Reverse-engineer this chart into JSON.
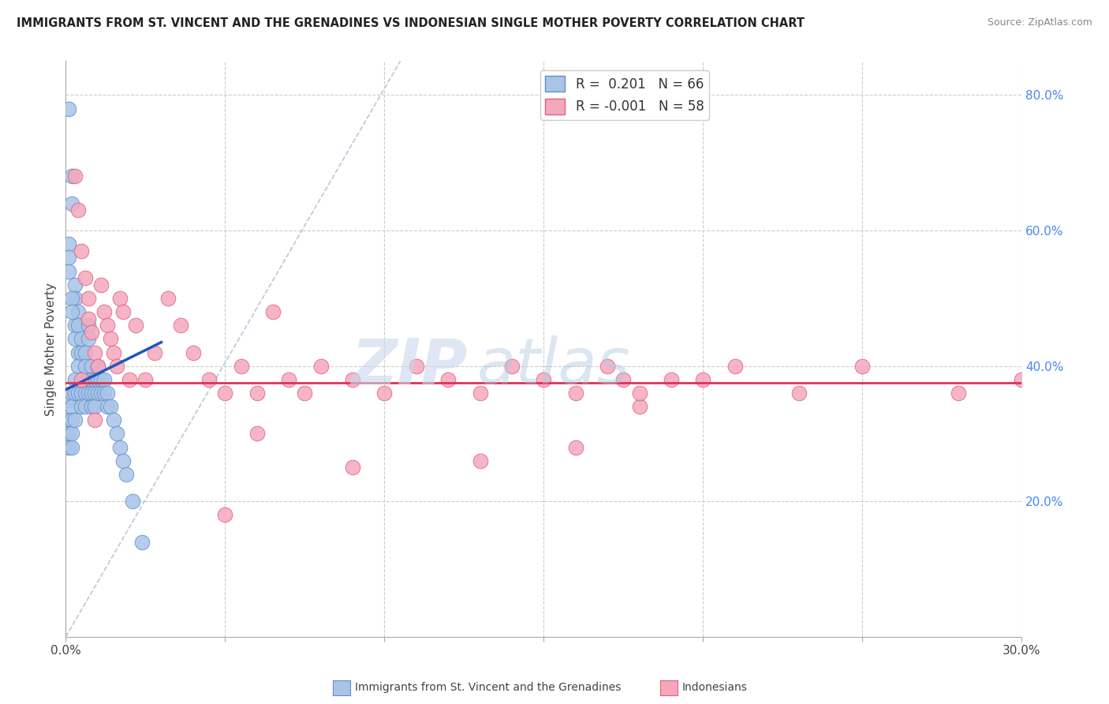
{
  "title": "IMMIGRANTS FROM ST. VINCENT AND THE GRENADINES VS INDONESIAN SINGLE MOTHER POVERTY CORRELATION CHART",
  "source": "Source: ZipAtlas.com",
  "ylabel": "Single Mother Poverty",
  "right_ytick_vals": [
    0.8,
    0.6,
    0.4,
    0.2
  ],
  "xmin": 0.0,
  "xmax": 0.3,
  "ymin": 0.0,
  "ymax": 0.85,
  "blue_color": "#aac4e8",
  "pink_color": "#f5a8bc",
  "blue_edge_color": "#6090c8",
  "pink_edge_color": "#e06080",
  "blue_line_color": "#2255bb",
  "pink_line_color": "#dd3355",
  "dashed_line_color": "#b8c8d8",
  "watermark_zip": "ZIP",
  "watermark_atlas": "atlas",
  "blue_scatter_x": [
    0.001,
    0.001,
    0.001,
    0.001,
    0.001,
    0.002,
    0.002,
    0.002,
    0.002,
    0.002,
    0.002,
    0.002,
    0.003,
    0.003,
    0.003,
    0.003,
    0.003,
    0.003,
    0.004,
    0.004,
    0.004,
    0.004,
    0.004,
    0.005,
    0.005,
    0.005,
    0.005,
    0.005,
    0.006,
    0.006,
    0.006,
    0.006,
    0.007,
    0.007,
    0.007,
    0.007,
    0.008,
    0.008,
    0.008,
    0.008,
    0.009,
    0.009,
    0.009,
    0.01,
    0.01,
    0.01,
    0.011,
    0.011,
    0.012,
    0.012,
    0.013,
    0.013,
    0.014,
    0.015,
    0.016,
    0.017,
    0.018,
    0.019,
    0.021,
    0.024,
    0.001,
    0.001,
    0.001,
    0.002,
    0.002,
    0.003
  ],
  "blue_scatter_y": [
    0.78,
    0.35,
    0.32,
    0.3,
    0.28,
    0.68,
    0.64,
    0.36,
    0.34,
    0.32,
    0.3,
    0.28,
    0.52,
    0.5,
    0.46,
    0.44,
    0.36,
    0.32,
    0.48,
    0.46,
    0.42,
    0.4,
    0.36,
    0.44,
    0.42,
    0.38,
    0.36,
    0.34,
    0.42,
    0.4,
    0.36,
    0.34,
    0.46,
    0.44,
    0.38,
    0.36,
    0.4,
    0.38,
    0.36,
    0.34,
    0.38,
    0.36,
    0.34,
    0.4,
    0.38,
    0.36,
    0.38,
    0.36,
    0.38,
    0.36,
    0.36,
    0.34,
    0.34,
    0.32,
    0.3,
    0.28,
    0.26,
    0.24,
    0.2,
    0.14,
    0.58,
    0.56,
    0.54,
    0.5,
    0.48,
    0.38
  ],
  "pink_scatter_x": [
    0.003,
    0.004,
    0.005,
    0.006,
    0.007,
    0.007,
    0.008,
    0.009,
    0.01,
    0.011,
    0.012,
    0.013,
    0.014,
    0.015,
    0.016,
    0.017,
    0.018,
    0.02,
    0.022,
    0.025,
    0.028,
    0.032,
    0.036,
    0.04,
    0.045,
    0.05,
    0.055,
    0.06,
    0.065,
    0.07,
    0.075,
    0.08,
    0.09,
    0.1,
    0.11,
    0.12,
    0.13,
    0.14,
    0.15,
    0.16,
    0.17,
    0.175,
    0.18,
    0.19,
    0.2,
    0.21,
    0.23,
    0.25,
    0.28,
    0.3,
    0.005,
    0.009,
    0.06,
    0.18,
    0.16,
    0.13,
    0.09,
    0.05
  ],
  "pink_scatter_y": [
    0.68,
    0.63,
    0.57,
    0.53,
    0.5,
    0.47,
    0.45,
    0.42,
    0.4,
    0.52,
    0.48,
    0.46,
    0.44,
    0.42,
    0.4,
    0.5,
    0.48,
    0.38,
    0.46,
    0.38,
    0.42,
    0.5,
    0.46,
    0.42,
    0.38,
    0.36,
    0.4,
    0.36,
    0.48,
    0.38,
    0.36,
    0.4,
    0.38,
    0.36,
    0.4,
    0.38,
    0.36,
    0.4,
    0.38,
    0.36,
    0.4,
    0.38,
    0.34,
    0.38,
    0.38,
    0.4,
    0.36,
    0.4,
    0.36,
    0.38,
    0.38,
    0.32,
    0.3,
    0.36,
    0.28,
    0.26,
    0.25,
    0.18
  ],
  "blue_trend_x": [
    0.0,
    0.03
  ],
  "blue_trend_y": [
    0.365,
    0.435
  ],
  "pink_trend_y": 0.375
}
